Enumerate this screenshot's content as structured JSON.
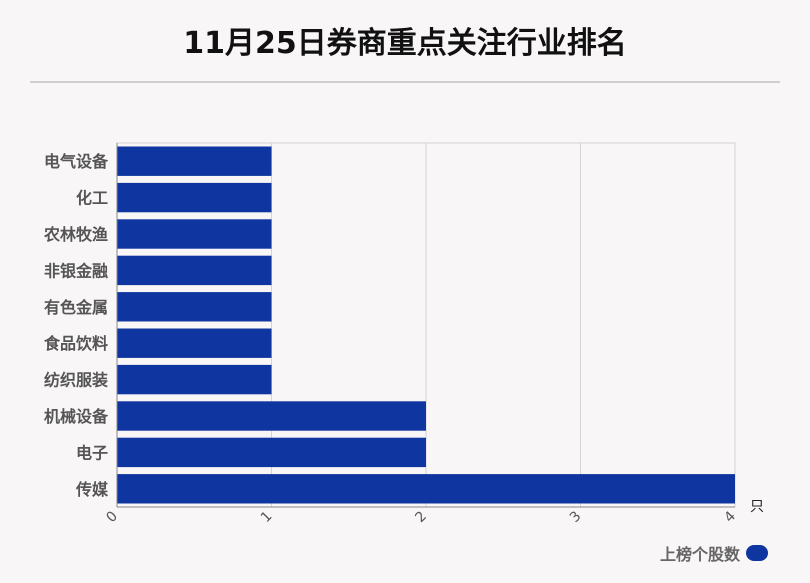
{
  "title": "11月25日券商重点关注行业排名",
  "chart_data": {
    "type": "bar",
    "orientation": "horizontal",
    "categories": [
      "电气设备",
      "化工",
      "农林牧渔",
      "非银金融",
      "有色金属",
      "食品饮料",
      "纺织服装",
      "机械设备",
      "电子",
      "传媒"
    ],
    "series": [
      {
        "name": "上榜个股数",
        "values": [
          1,
          1,
          1,
          1,
          1,
          1,
          1,
          2,
          2,
          4
        ]
      }
    ],
    "xlim": [
      0,
      4
    ],
    "xticks": [
      "0",
      "1",
      "2",
      "3",
      "4"
    ],
    "xunit": "只",
    "grid": true,
    "legend_position": "bottom-right",
    "bar_color": "#0e35a0"
  }
}
